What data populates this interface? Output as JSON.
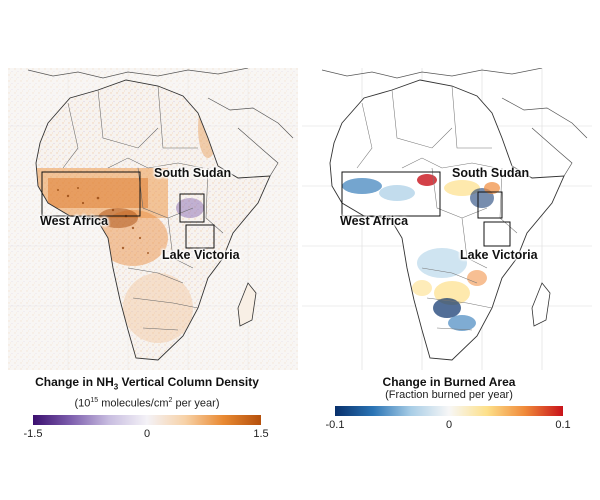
{
  "maps": {
    "left": {
      "labels": {
        "south_sudan": "South Sudan",
        "west_africa": "West Africa",
        "lake_victoria": "Lake Victoria"
      },
      "legend": {
        "title_prefix": "Change in NH",
        "title_sub": "3",
        "title_suffix": " Vertical Column Density",
        "subtitle_open": "(10",
        "subtitle_exp": "15",
        "subtitle_mid": " molecules/cm",
        "subtitle_exp2": "2",
        "subtitle_close": " per year)",
        "ticks": [
          "-1.5",
          "0",
          "1.5"
        ],
        "colors": [
          "#3b0f6f",
          "#7e5fae",
          "#c8bde0",
          "#f4f2f7",
          "#f7d2a8",
          "#e98a33",
          "#b5500c"
        ]
      }
    },
    "right": {
      "labels": {
        "south_sudan": "South Sudan",
        "west_africa": "West Africa",
        "lake_victoria": "Lake Victoria"
      },
      "legend": {
        "title": "Change in Burned Area",
        "subtitle": "(Fraction burned per year)",
        "ticks": [
          "-0.1",
          "0",
          "0.1"
        ],
        "colors": [
          "#08306b",
          "#2a74b5",
          "#a8cde6",
          "#f7f7f7",
          "#fde08a",
          "#f08a3a",
          "#c8121a"
        ]
      }
    }
  }
}
